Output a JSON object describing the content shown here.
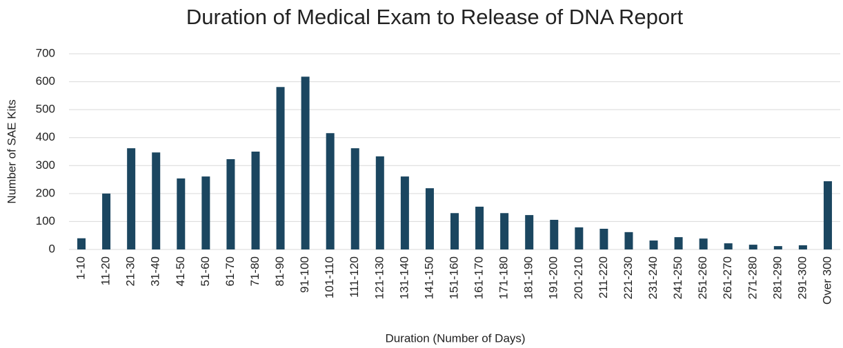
{
  "chart_data": {
    "type": "bar",
    "title": "Duration of Medical Exam to Release of DNA Report",
    "x_label": "Duration (Number of Days)",
    "y_label": "Number of SAE Kits",
    "categories": [
      "1-10",
      "11-20",
      "21-30",
      "31-40",
      "41-50",
      "51-60",
      "61-70",
      "71-80",
      "81-90",
      "91-100",
      "101-110",
      "111-120",
      "121-130",
      "131-140",
      "141-150",
      "151-160",
      "161-170",
      "171-180",
      "181-190",
      "191-200",
      "201-210",
      "211-220",
      "221-230",
      "231-240",
      "241-250",
      "251-260",
      "261-270",
      "271-280",
      "281-290",
      "291-300",
      "Over 300"
    ],
    "values": [
      40,
      200,
      362,
      347,
      254,
      261,
      323,
      350,
      581,
      618,
      416,
      362,
      333,
      261,
      219,
      130,
      153,
      130,
      123,
      106,
      79,
      74,
      62,
      32,
      44,
      39,
      22,
      17,
      12,
      15,
      244
    ],
    "color": "#1b4660",
    "ylim": [
      0,
      700
    ],
    "yticks": [
      0,
      100,
      200,
      300,
      400,
      500,
      600,
      700
    ],
    "grid": true
  }
}
